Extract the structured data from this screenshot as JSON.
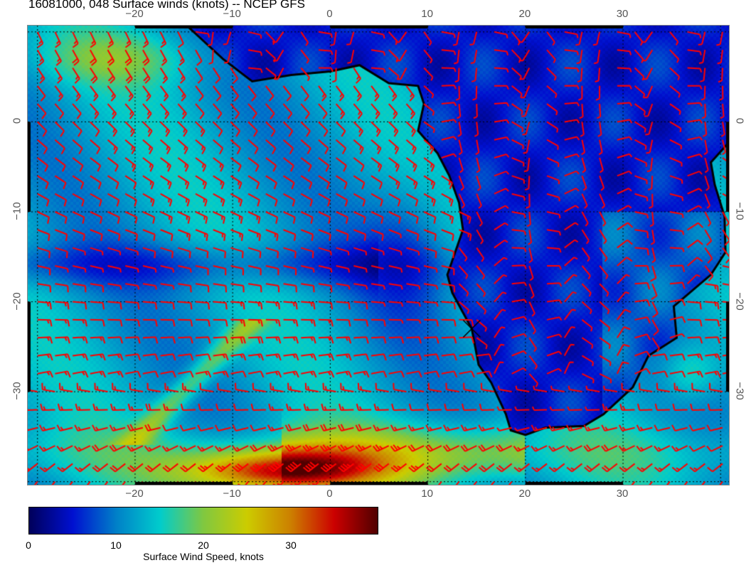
{
  "title": "16081000, 048 Surface winds (knots) -- NCEP GFS",
  "map": {
    "lon_range": [
      -31,
      41
    ],
    "lat_range": [
      -40.5,
      10.7
    ],
    "lon_ticks": [
      -20,
      -10,
      0,
      10,
      20,
      30
    ],
    "lon_tick_labels": [
      "−20",
      "−10",
      "0",
      "10",
      "20",
      "30"
    ],
    "lat_ticks": [
      0,
      -10,
      -20,
      -30
    ],
    "lat_tick_labels": [
      "0",
      "−10",
      "−20",
      "−30"
    ],
    "gridlines": "dotted every 10 degrees",
    "barb_color": "#ff0000",
    "coastline_color": "#000000",
    "marker": {
      "symbol": "x",
      "lon": 14.5,
      "lat": -23
    }
  },
  "colorbar": {
    "label": "Surface Wind Speed, knots",
    "range": [
      0,
      40
    ],
    "ticks": [
      "0",
      "10",
      "20",
      "30"
    ],
    "colormap": [
      "#00005a",
      "#0010d0",
      "#0080c8",
      "#00cccc",
      "#80c840",
      "#cccc00",
      "#cc8000",
      "#cc0000",
      "#500000"
    ]
  }
}
